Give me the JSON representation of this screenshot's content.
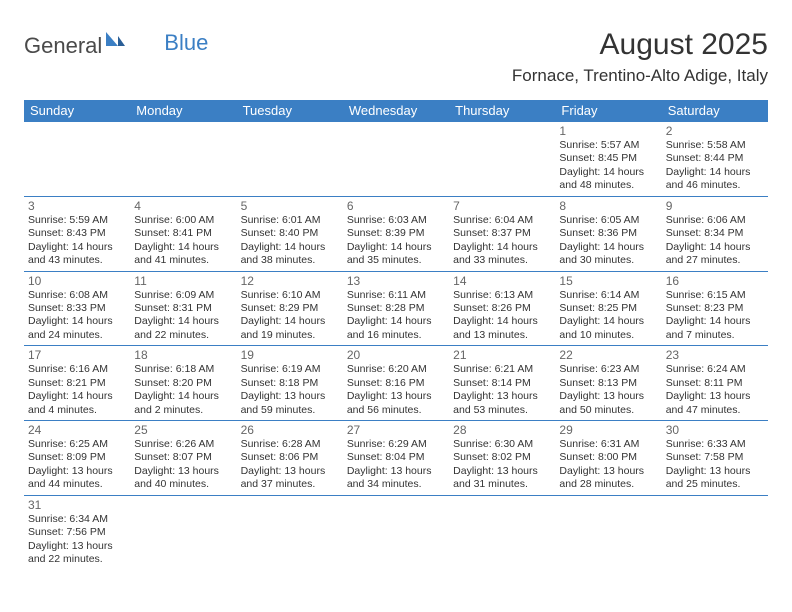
{
  "logo": {
    "general": "General",
    "blue": "Blue"
  },
  "title": "August 2025",
  "location": "Fornace, Trentino-Alto Adige, Italy",
  "dayNames": [
    "Sunday",
    "Monday",
    "Tuesday",
    "Wednesday",
    "Thursday",
    "Friday",
    "Saturday"
  ],
  "colors": {
    "headerBar": "#3b7fc4",
    "headerText": "#ffffff",
    "bodyText": "#333333",
    "dayNumText": "#666666",
    "ruleLine": "#3b7fc4",
    "background": "#ffffff"
  },
  "typography": {
    "titleSize": 30,
    "locationSize": 17,
    "dayHeadSize": 13,
    "dayNumSize": 12,
    "bodySize": 10.5
  },
  "weeks": [
    [
      null,
      null,
      null,
      null,
      null,
      {
        "n": "1",
        "sr": "5:57 AM",
        "ss": "8:45 PM",
        "dl": "14 hours and 48 minutes."
      },
      {
        "n": "2",
        "sr": "5:58 AM",
        "ss": "8:44 PM",
        "dl": "14 hours and 46 minutes."
      }
    ],
    [
      {
        "n": "3",
        "sr": "5:59 AM",
        "ss": "8:43 PM",
        "dl": "14 hours and 43 minutes."
      },
      {
        "n": "4",
        "sr": "6:00 AM",
        "ss": "8:41 PM",
        "dl": "14 hours and 41 minutes."
      },
      {
        "n": "5",
        "sr": "6:01 AM",
        "ss": "8:40 PM",
        "dl": "14 hours and 38 minutes."
      },
      {
        "n": "6",
        "sr": "6:03 AM",
        "ss": "8:39 PM",
        "dl": "14 hours and 35 minutes."
      },
      {
        "n": "7",
        "sr": "6:04 AM",
        "ss": "8:37 PM",
        "dl": "14 hours and 33 minutes."
      },
      {
        "n": "8",
        "sr": "6:05 AM",
        "ss": "8:36 PM",
        "dl": "14 hours and 30 minutes."
      },
      {
        "n": "9",
        "sr": "6:06 AM",
        "ss": "8:34 PM",
        "dl": "14 hours and 27 minutes."
      }
    ],
    [
      {
        "n": "10",
        "sr": "6:08 AM",
        "ss": "8:33 PM",
        "dl": "14 hours and 24 minutes."
      },
      {
        "n": "11",
        "sr": "6:09 AM",
        "ss": "8:31 PM",
        "dl": "14 hours and 22 minutes."
      },
      {
        "n": "12",
        "sr": "6:10 AM",
        "ss": "8:29 PM",
        "dl": "14 hours and 19 minutes."
      },
      {
        "n": "13",
        "sr": "6:11 AM",
        "ss": "8:28 PM",
        "dl": "14 hours and 16 minutes."
      },
      {
        "n": "14",
        "sr": "6:13 AM",
        "ss": "8:26 PM",
        "dl": "14 hours and 13 minutes."
      },
      {
        "n": "15",
        "sr": "6:14 AM",
        "ss": "8:25 PM",
        "dl": "14 hours and 10 minutes."
      },
      {
        "n": "16",
        "sr": "6:15 AM",
        "ss": "8:23 PM",
        "dl": "14 hours and 7 minutes."
      }
    ],
    [
      {
        "n": "17",
        "sr": "6:16 AM",
        "ss": "8:21 PM",
        "dl": "14 hours and 4 minutes."
      },
      {
        "n": "18",
        "sr": "6:18 AM",
        "ss": "8:20 PM",
        "dl": "14 hours and 2 minutes."
      },
      {
        "n": "19",
        "sr": "6:19 AM",
        "ss": "8:18 PM",
        "dl": "13 hours and 59 minutes."
      },
      {
        "n": "20",
        "sr": "6:20 AM",
        "ss": "8:16 PM",
        "dl": "13 hours and 56 minutes."
      },
      {
        "n": "21",
        "sr": "6:21 AM",
        "ss": "8:14 PM",
        "dl": "13 hours and 53 minutes."
      },
      {
        "n": "22",
        "sr": "6:23 AM",
        "ss": "8:13 PM",
        "dl": "13 hours and 50 minutes."
      },
      {
        "n": "23",
        "sr": "6:24 AM",
        "ss": "8:11 PM",
        "dl": "13 hours and 47 minutes."
      }
    ],
    [
      {
        "n": "24",
        "sr": "6:25 AM",
        "ss": "8:09 PM",
        "dl": "13 hours and 44 minutes."
      },
      {
        "n": "25",
        "sr": "6:26 AM",
        "ss": "8:07 PM",
        "dl": "13 hours and 40 minutes."
      },
      {
        "n": "26",
        "sr": "6:28 AM",
        "ss": "8:06 PM",
        "dl": "13 hours and 37 minutes."
      },
      {
        "n": "27",
        "sr": "6:29 AM",
        "ss": "8:04 PM",
        "dl": "13 hours and 34 minutes."
      },
      {
        "n": "28",
        "sr": "6:30 AM",
        "ss": "8:02 PM",
        "dl": "13 hours and 31 minutes."
      },
      {
        "n": "29",
        "sr": "6:31 AM",
        "ss": "8:00 PM",
        "dl": "13 hours and 28 minutes."
      },
      {
        "n": "30",
        "sr": "6:33 AM",
        "ss": "7:58 PM",
        "dl": "13 hours and 25 minutes."
      }
    ],
    [
      {
        "n": "31",
        "sr": "6:34 AM",
        "ss": "7:56 PM",
        "dl": "13 hours and 22 minutes."
      },
      null,
      null,
      null,
      null,
      null,
      null
    ]
  ],
  "labels": {
    "sunrise": "Sunrise: ",
    "sunset": "Sunset: ",
    "daylight": "Daylight: "
  }
}
